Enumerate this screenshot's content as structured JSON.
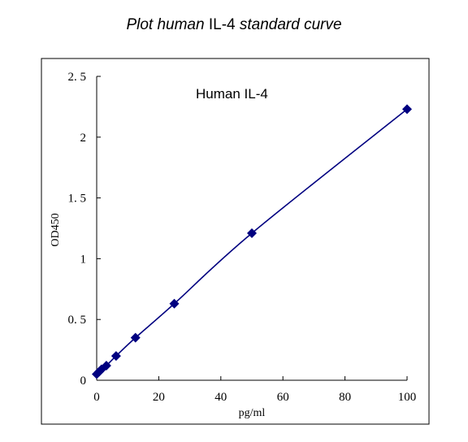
{
  "title": {
    "part1": "Plot human ",
    "part2": "IL-4",
    "part3": " standard curve"
  },
  "chart_data": {
    "type": "scatter",
    "title": "Plot human IL-4 standard curve",
    "annotation": "Human IL-4",
    "xlabel": "pg/ml",
    "ylabel": "OD450",
    "xlim": [
      0,
      100
    ],
    "ylim": [
      0,
      2.5
    ],
    "x_ticks": [
      0,
      20,
      40,
      60,
      80,
      100
    ],
    "y_ticks": [
      0,
      0.5,
      1,
      1.5,
      2,
      2.5
    ],
    "y_tick_labels": [
      "0",
      "0. 5",
      "1",
      "1. 5",
      "2",
      "2. 5"
    ],
    "grid": false,
    "series": [
      {
        "x": [
          0,
          0.78,
          1.56,
          3.12,
          6.25,
          12.5,
          25,
          50,
          100
        ],
        "y": [
          0.05,
          0.07,
          0.09,
          0.12,
          0.2,
          0.35,
          0.63,
          1.21,
          2.23
        ],
        "color": "#000080",
        "marker": "diamond",
        "line": "smooth"
      }
    ]
  }
}
